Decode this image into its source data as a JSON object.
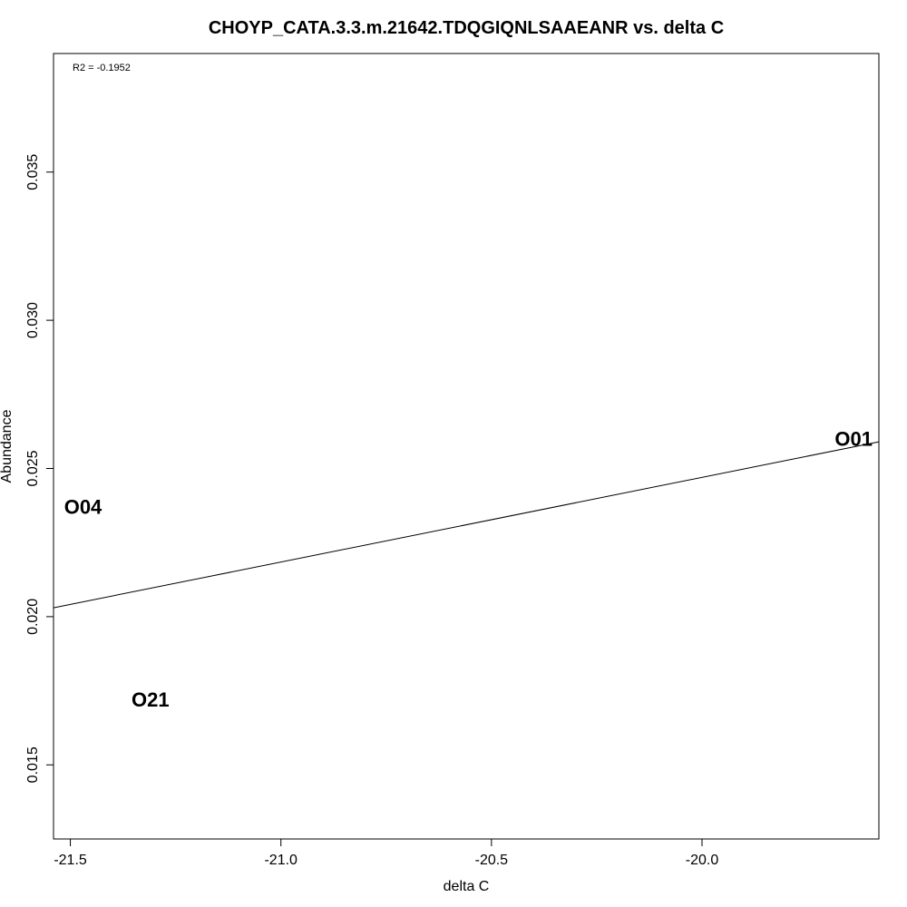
{
  "chart_data": {
    "type": "scatter",
    "title": "CHOYP_CATA.3.3.m.21642.TDQGIQNLSAAEANR vs. delta C",
    "xlabel": "delta C",
    "ylabel": "Abundance",
    "annotation": "R2 = -0.1952",
    "xlim": [
      -21.54,
      -19.58
    ],
    "ylim": [
      0.0125,
      0.039
    ],
    "x_ticks": [
      -21.5,
      -21.0,
      -20.5,
      -20.0
    ],
    "x_tick_labels": [
      "-21.5",
      "-21.0",
      "-20.5",
      "-20.0"
    ],
    "y_ticks": [
      0.015,
      0.02,
      0.025,
      0.03,
      0.035
    ],
    "y_tick_labels": [
      "0.015",
      "0.020",
      "0.025",
      "0.030",
      "0.035"
    ],
    "grid": false,
    "points": [
      {
        "label": "O04",
        "x": -21.47,
        "y": 0.0237
      },
      {
        "label": "O21",
        "x": -21.31,
        "y": 0.0172
      },
      {
        "label": "O01",
        "x": -19.64,
        "y": 0.026
      }
    ],
    "fit_line": {
      "x": [
        -21.54,
        -19.58
      ],
      "y": [
        0.0203,
        0.0259
      ]
    },
    "colors": {
      "line": "#000000",
      "text": "#000000",
      "background": "#ffffff"
    }
  }
}
